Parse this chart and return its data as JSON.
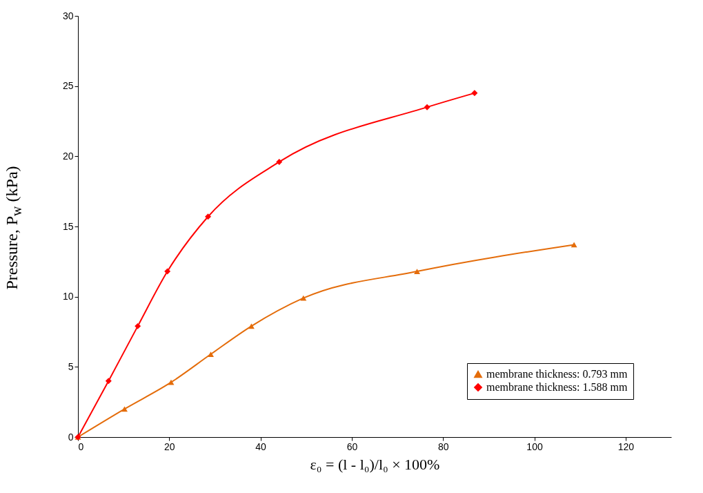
{
  "chart_data": {
    "type": "line",
    "xlabel": "ε₀ =  (l - l₀)/l₀ × 100%",
    "ylabel": "Pressure, P$_{w}$ (kPa)",
    "xlim": [
      0,
      130
    ],
    "xticks": [
      0,
      20,
      40,
      60,
      80,
      100,
      120
    ],
    "ylim": [
      0,
      30
    ],
    "yticks": [
      0,
      5,
      10,
      15,
      20,
      25,
      30
    ],
    "grid": false,
    "legend": "bottom right",
    "line_style": "solid",
    "series": [
      {
        "name": "membrane thickness: 0.793 mm",
        "color": "#e46c0a",
        "marker": "triangle",
        "x": [
          0,
          10.2,
          20.4,
          29.1,
          38,
          49.4,
          74.3,
          108.7
        ],
        "values": [
          0,
          2,
          3.9,
          5.9,
          7.9,
          9.9,
          11.8,
          13.7
        ]
      },
      {
        "name": "membrane thickness: 1.588 mm",
        "color": "#ff0000",
        "marker": "diamond",
        "x": [
          0,
          6.7,
          13.1,
          19.6,
          28.5,
          44.1,
          76.5,
          86.9
        ],
        "values": [
          0,
          4,
          7.9,
          11.8,
          15.7,
          19.6,
          23.5,
          24.5
        ]
      }
    ]
  }
}
